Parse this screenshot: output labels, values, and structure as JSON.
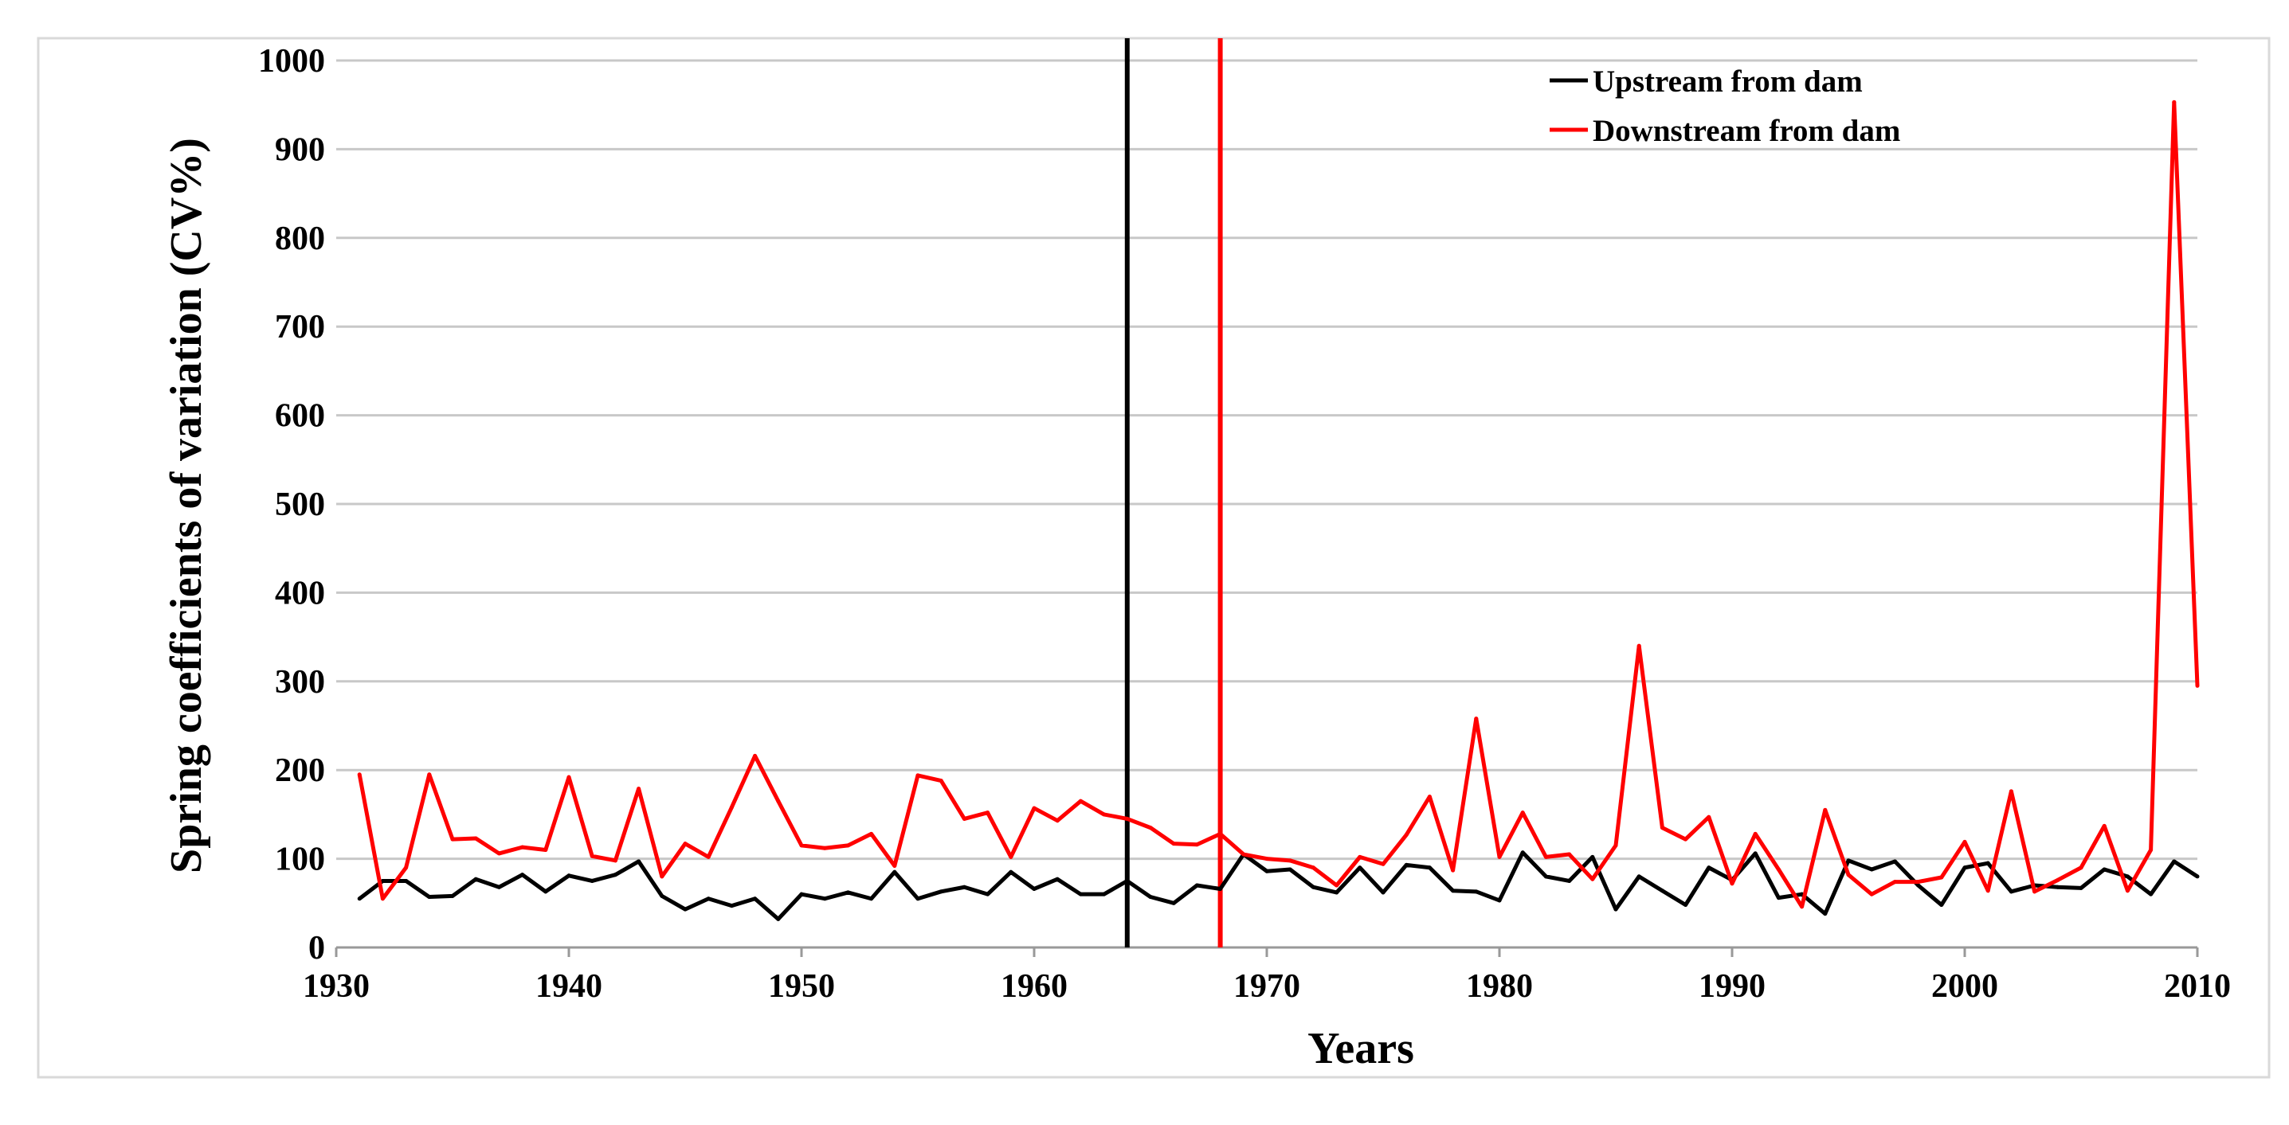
{
  "chart_data": {
    "type": "line",
    "title": "",
    "xlabel": "Years",
    "ylabel": "Spring coefficients of variation (CV%)",
    "xlim": [
      1930,
      2010
    ],
    "ylim": [
      0,
      1000
    ],
    "x_ticks": [
      1930,
      1940,
      1950,
      1960,
      1970,
      1980,
      1990,
      2000,
      2010
    ],
    "y_ticks": [
      0,
      100,
      200,
      300,
      400,
      500,
      600,
      700,
      800,
      900,
      1000
    ],
    "grid": "horizontal",
    "legend_position": "top-right",
    "x": [
      1931,
      1932,
      1933,
      1934,
      1935,
      1936,
      1937,
      1938,
      1939,
      1940,
      1941,
      1942,
      1943,
      1944,
      1945,
      1946,
      1947,
      1948,
      1949,
      1950,
      1951,
      1952,
      1953,
      1954,
      1955,
      1956,
      1957,
      1958,
      1959,
      1960,
      1961,
      1962,
      1963,
      1964,
      1965,
      1966,
      1967,
      1968,
      1969,
      1970,
      1971,
      1972,
      1973,
      1974,
      1975,
      1976,
      1977,
      1978,
      1979,
      1980,
      1981,
      1982,
      1983,
      1984,
      1985,
      1986,
      1987,
      1988,
      1989,
      1990,
      1991,
      1992,
      1993,
      1994,
      1995,
      1996,
      1997,
      1998,
      1999,
      2000,
      2001,
      2002,
      2003,
      2004,
      2005,
      2006,
      2007,
      2008,
      2009,
      2010
    ],
    "series": [
      {
        "name": "Upstream from dam",
        "color": "#000000",
        "values": [
          55,
          75,
          75,
          57,
          58,
          77,
          68,
          82,
          63,
          81,
          75,
          82,
          97,
          58,
          43,
          55,
          47,
          55,
          32,
          60,
          55,
          62,
          55,
          85,
          55,
          63,
          68,
          60,
          85,
          66,
          77,
          60,
          60,
          75,
          57,
          50,
          70,
          66,
          105,
          86,
          88,
          68,
          62,
          90,
          62,
          93,
          90,
          64,
          63,
          53,
          107,
          80,
          75,
          102,
          43,
          80,
          64,
          48,
          90,
          76,
          106,
          56,
          60,
          38,
          98,
          88,
          97,
          70,
          48,
          90,
          95,
          63,
          70,
          68,
          67,
          88,
          80,
          60,
          97,
          80
        ]
      },
      {
        "name": "Downstream from dam",
        "color": "#ff0000",
        "values": [
          195,
          55,
          90,
          195,
          122,
          123,
          106,
          113,
          110,
          192,
          103,
          98,
          179,
          80,
          117,
          102,
          158,
          216,
          165,
          115,
          112,
          115,
          128,
          92,
          194,
          188,
          145,
          152,
          102,
          157,
          143,
          165,
          150,
          145,
          135,
          117,
          116,
          128,
          105,
          100,
          98,
          90,
          70,
          102,
          94,
          127,
          170,
          87,
          258,
          102,
          152,
          102,
          105,
          77,
          115,
          340,
          135,
          122,
          147,
          72,
          128,
          88,
          46,
          155,
          82,
          60,
          74,
          74,
          79,
          119,
          64,
          176,
          63,
          76,
          90,
          137,
          64,
          110,
          953,
          295
        ]
      }
    ],
    "reference_lines": [
      {
        "x": 1964,
        "color": "#000000"
      },
      {
        "x": 1968,
        "color": "#ff0000"
      }
    ]
  }
}
